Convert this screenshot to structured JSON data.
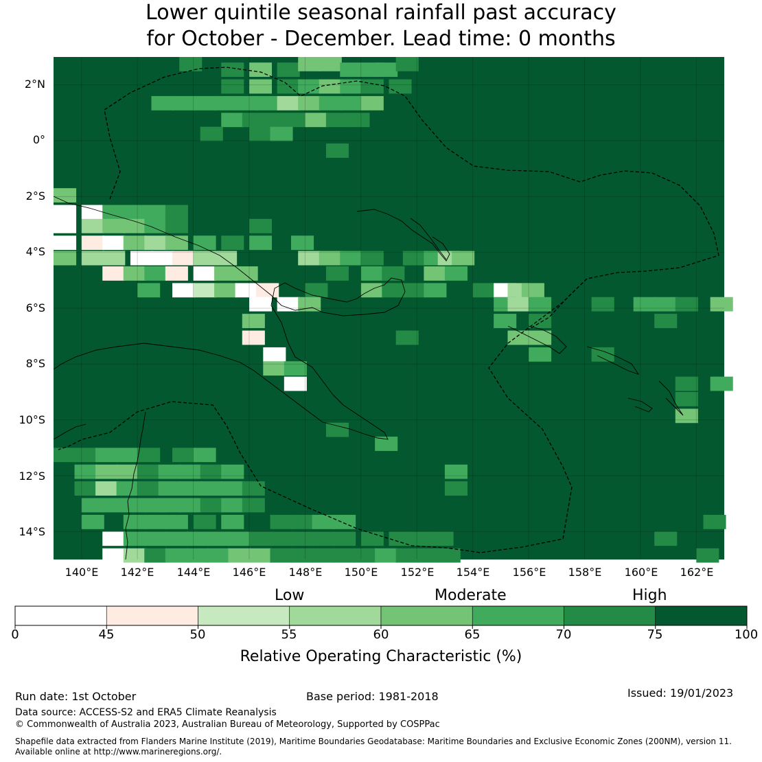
{
  "title": {
    "line1": "Lower quintile seasonal rainfall past accuracy",
    "line2": "for October - December. Lead time: 0 months"
  },
  "map": {
    "lat_ticks": [
      "2°N",
      "0°",
      "2°S",
      "4°S",
      "6°S",
      "8°S",
      "10°S",
      "12°S",
      "14°S"
    ],
    "lon_ticks": [
      "140°E",
      "142°E",
      "144°E",
      "146°E",
      "148°E",
      "150°E",
      "152°E",
      "154°E",
      "156°E",
      "158°E",
      "160°E",
      "162°E"
    ],
    "background_color": "#04582f"
  },
  "legend": {
    "categories": [
      "Low",
      "Moderate",
      "High"
    ],
    "bins": [
      {
        "from": 0,
        "to": 45,
        "color": "#ffffff"
      },
      {
        "from": 45,
        "to": 50,
        "color": "#feebe2"
      },
      {
        "from": 50,
        "to": 55,
        "color": "#c7e9c0"
      },
      {
        "from": 55,
        "to": 60,
        "color": "#a1d99b"
      },
      {
        "from": 60,
        "to": 65,
        "color": "#74c476"
      },
      {
        "from": 65,
        "to": 70,
        "color": "#41ab5d"
      },
      {
        "from": 70,
        "to": 75,
        "color": "#238b45"
      },
      {
        "from": 75,
        "to": 100,
        "color": "#04582f"
      }
    ],
    "tick_labels": [
      "0",
      "45",
      "50",
      "55",
      "60",
      "65",
      "70",
      "75",
      "100"
    ],
    "title": "Relative Operating Characteristic (%)"
  },
  "footer": {
    "run_date": "Run date: 1st October",
    "base_period": "Base period: 1981-2018",
    "issued": "Issued: 19/01/2023",
    "data_source": "Data source: ACCESS-S2 and ERA5 Climate Reanalysis",
    "copyright": "© Commonwealth of Australia 2023, Australian Bureau of Meteorology, Supported by COSPPac",
    "shapefile_line1": "Shapefile data extracted from Flanders Marine Institute (2019), Maritime Boundaries Geodatabase: Maritime Boundaries and Exclusive Economic Zones (200NM), version 11.",
    "shapefile_line2": "Available online at http://www.marineregions.org/."
  }
}
